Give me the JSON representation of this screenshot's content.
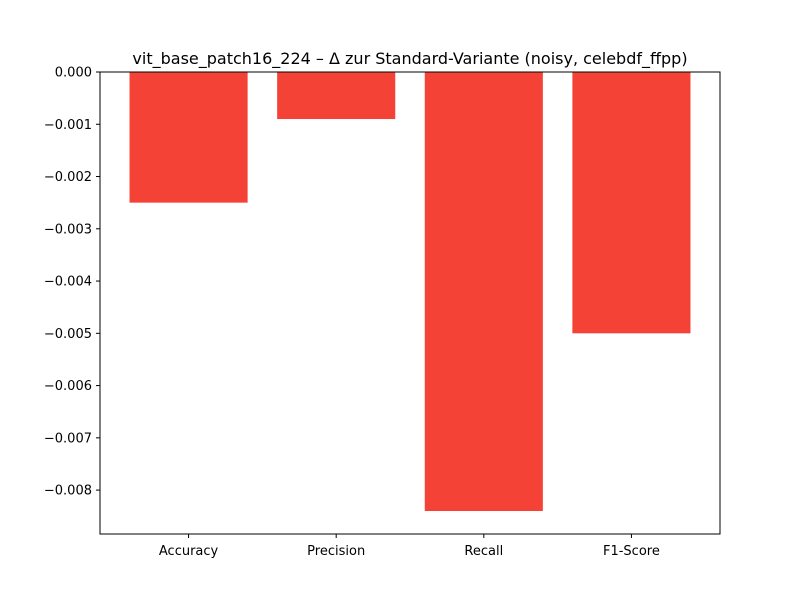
{
  "chart_data": {
    "type": "bar",
    "title": "vit_base_patch16_224 – Δ zur Standard-Variante (noisy, celebdf_ffpp)",
    "xlabel": "",
    "ylabel": "",
    "categories": [
      "Accuracy",
      "Precision",
      "Recall",
      "F1-Score"
    ],
    "values": [
      -0.0025,
      -0.0009,
      -0.0084,
      -0.005
    ],
    "ylim": [
      -0.00884,
      0.0
    ],
    "yticks": [
      0.0,
      -0.001,
      -0.002,
      -0.003,
      -0.004,
      -0.005,
      -0.006,
      -0.007,
      -0.008
    ],
    "ytick_labels": [
      "0.000",
      "−0.001",
      "−0.002",
      "−0.003",
      "−0.004",
      "−0.005",
      "−0.006",
      "−0.007",
      "−0.008"
    ],
    "bar_color": "#f44336",
    "grid": false,
    "legend": "none"
  }
}
